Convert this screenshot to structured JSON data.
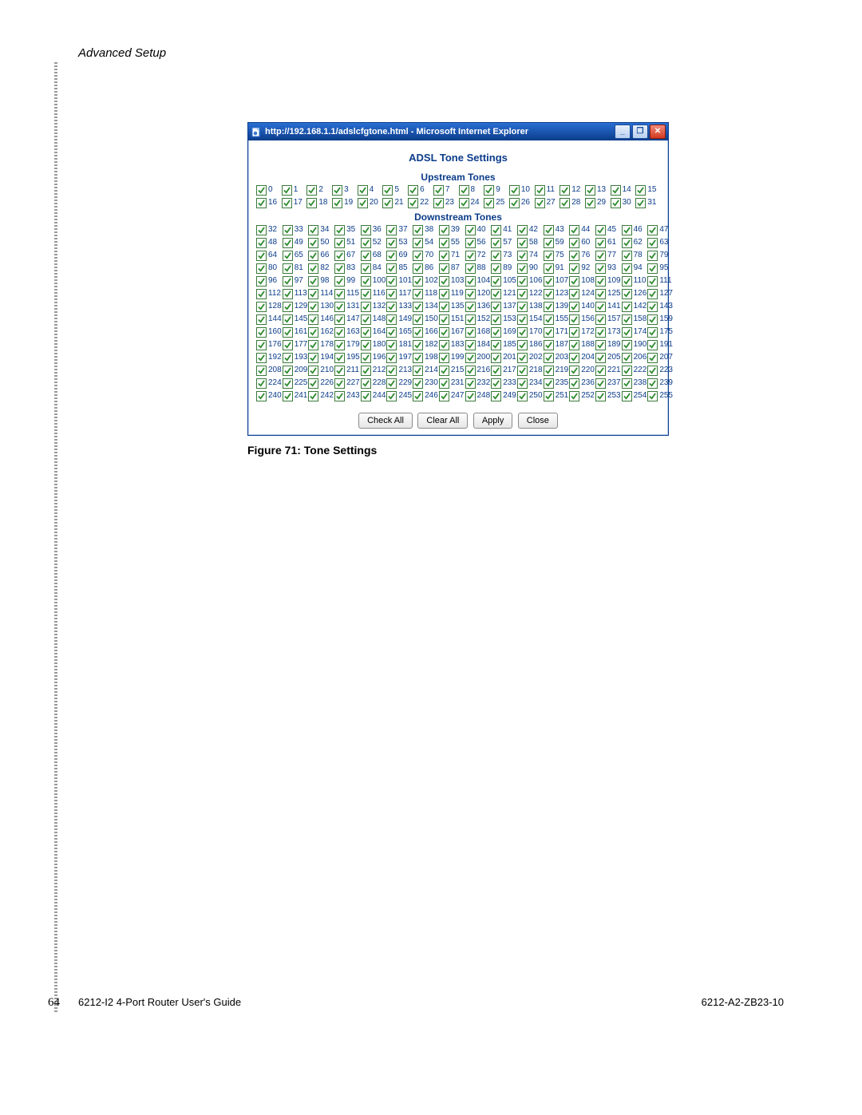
{
  "page": {
    "header_title": "Advanced Setup",
    "page_number": "64",
    "footer_left": "6212-I2 4-Port Router User's Guide",
    "footer_right": "6212-A2-ZB23-10",
    "figure_caption": "Figure 71: Tone Settings"
  },
  "screenshot": {
    "title": "http://192.168.1.1/adslcfgtone.html - Microsoft Internet Explorer",
    "panel_title": "ADSL Tone Settings",
    "upstream_label": "Upstream Tones",
    "downstream_label": "Downstream Tones",
    "upstream_start": 0,
    "upstream_end": 31,
    "downstream_start": 32,
    "downstream_end": 255,
    "columns": 16,
    "all_checked": true,
    "checkbox_border_color": "#3a7a3a",
    "check_color": "#2e8b2e",
    "text_color": "#0b3c8a",
    "buttons": {
      "check_all": "Check All",
      "clear_all": "Clear All",
      "apply": "Apply",
      "close": "Close"
    },
    "window_controls": {
      "minimize": "_",
      "maximize": "❐",
      "close": "✕"
    }
  },
  "colors": {
    "titlebar_gradient_top": "#2a6fd4",
    "titlebar_gradient_bottom": "#0b3c8a",
    "window_border": "#0b3c8a",
    "close_bg_top": "#f28a7a",
    "close_bg_bottom": "#d23a1e",
    "hatch": "#9a9a9a",
    "background": "#ffffff"
  }
}
